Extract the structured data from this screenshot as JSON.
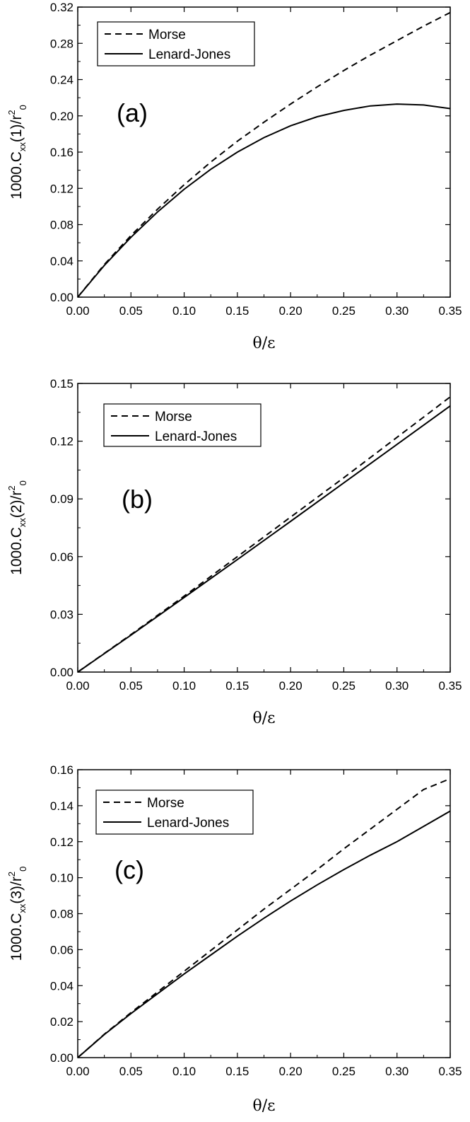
{
  "chart_data": [
    {
      "type": "line",
      "panel_label": "(a)",
      "xlabel": "θ/ε",
      "ylabel": {
        "main": "1000.C",
        "sub": "xx",
        "mid": "(1)/r",
        "sup": "2",
        "sub2": "0"
      },
      "xlim": [
        0,
        0.35
      ],
      "ylim": [
        0,
        0.32
      ],
      "xticks": [
        "0.00",
        "0.05",
        "0.10",
        "0.15",
        "0.20",
        "0.25",
        "0.30",
        "0.35"
      ],
      "yticks": [
        "0.00",
        "0.04",
        "0.08",
        "0.12",
        "0.16",
        "0.20",
        "0.24",
        "0.28",
        "0.32"
      ],
      "legend_position": "top-left",
      "x": [
        0,
        0.025,
        0.05,
        0.075,
        0.1,
        0.125,
        0.15,
        0.175,
        0.2,
        0.225,
        0.25,
        0.275,
        0.3,
        0.325,
        0.35
      ],
      "series": [
        {
          "name": "Morse",
          "style": "dashed",
          "values": [
            0,
            0.036,
            0.068,
            0.097,
            0.124,
            0.149,
            0.172,
            0.193,
            0.213,
            0.232,
            0.25,
            0.267,
            0.283,
            0.299,
            0.314
          ]
        },
        {
          "name": "Lenard-Jones",
          "style": "solid",
          "values": [
            0,
            0.035,
            0.066,
            0.094,
            0.119,
            0.141,
            0.16,
            0.176,
            0.189,
            0.199,
            0.206,
            0.211,
            0.213,
            0.212,
            0.208
          ]
        }
      ]
    },
    {
      "type": "line",
      "panel_label": "(b)",
      "xlabel": "θ/ε",
      "ylabel": {
        "main": "1000.C",
        "sub": "xx",
        "mid": "(2)/r",
        "sup": "2",
        "sub2": "0"
      },
      "xlim": [
        0,
        0.35
      ],
      "ylim": [
        0,
        0.15
      ],
      "xticks": [
        "0.00",
        "0.05",
        "0.10",
        "0.15",
        "0.20",
        "0.25",
        "0.30",
        "0.35"
      ],
      "yticks": [
        "0.00",
        "0.03",
        "0.06",
        "0.09",
        "0.12",
        "0.15"
      ],
      "legend_position": "top-left",
      "x": [
        0,
        0.05,
        0.1,
        0.15,
        0.2,
        0.25,
        0.3,
        0.35
      ],
      "series": [
        {
          "name": "Morse",
          "style": "dashed",
          "values": [
            0,
            0.0195,
            0.0395,
            0.06,
            0.0805,
            0.101,
            0.122,
            0.143
          ]
        },
        {
          "name": "Lenard-Jones",
          "style": "solid",
          "values": [
            0,
            0.0192,
            0.0388,
            0.0585,
            0.0783,
            0.0983,
            0.1183,
            0.1383
          ]
        }
      ]
    },
    {
      "type": "line",
      "panel_label": "(c)",
      "xlabel": "θ/ε",
      "ylabel": {
        "main": "1000.C",
        "sub": "xx",
        "mid": "(3)/r",
        "sup": "2",
        "sub2": "0"
      },
      "xlim": [
        0,
        0.35
      ],
      "ylim": [
        0,
        0.16
      ],
      "xticks": [
        "0.00",
        "0.05",
        "0.10",
        "0.15",
        "0.20",
        "0.25",
        "0.30",
        "0.35"
      ],
      "yticks": [
        "0.00",
        "0.02",
        "0.04",
        "0.06",
        "0.08",
        "0.10",
        "0.12",
        "0.14",
        "0.16"
      ],
      "legend_position": "top-left",
      "x": [
        0,
        0.025,
        0.05,
        0.075,
        0.1,
        0.125,
        0.15,
        0.175,
        0.2,
        0.225,
        0.25,
        0.275,
        0.3,
        0.325,
        0.35
      ],
      "series": [
        {
          "name": "Morse",
          "style": "dashed",
          "values": [
            0,
            0.013,
            0.025,
            0.0365,
            0.048,
            0.0595,
            0.071,
            0.0825,
            0.0935,
            0.1045,
            0.116,
            0.127,
            0.138,
            0.149,
            0.155
          ]
        },
        {
          "name": "Lenard-Jones",
          "style": "solid",
          "values": [
            0,
            0.0128,
            0.0245,
            0.0355,
            0.0465,
            0.057,
            0.0675,
            0.0775,
            0.087,
            0.096,
            0.1045,
            0.1125,
            0.12,
            0.1285,
            0.137
          ]
        }
      ]
    }
  ]
}
